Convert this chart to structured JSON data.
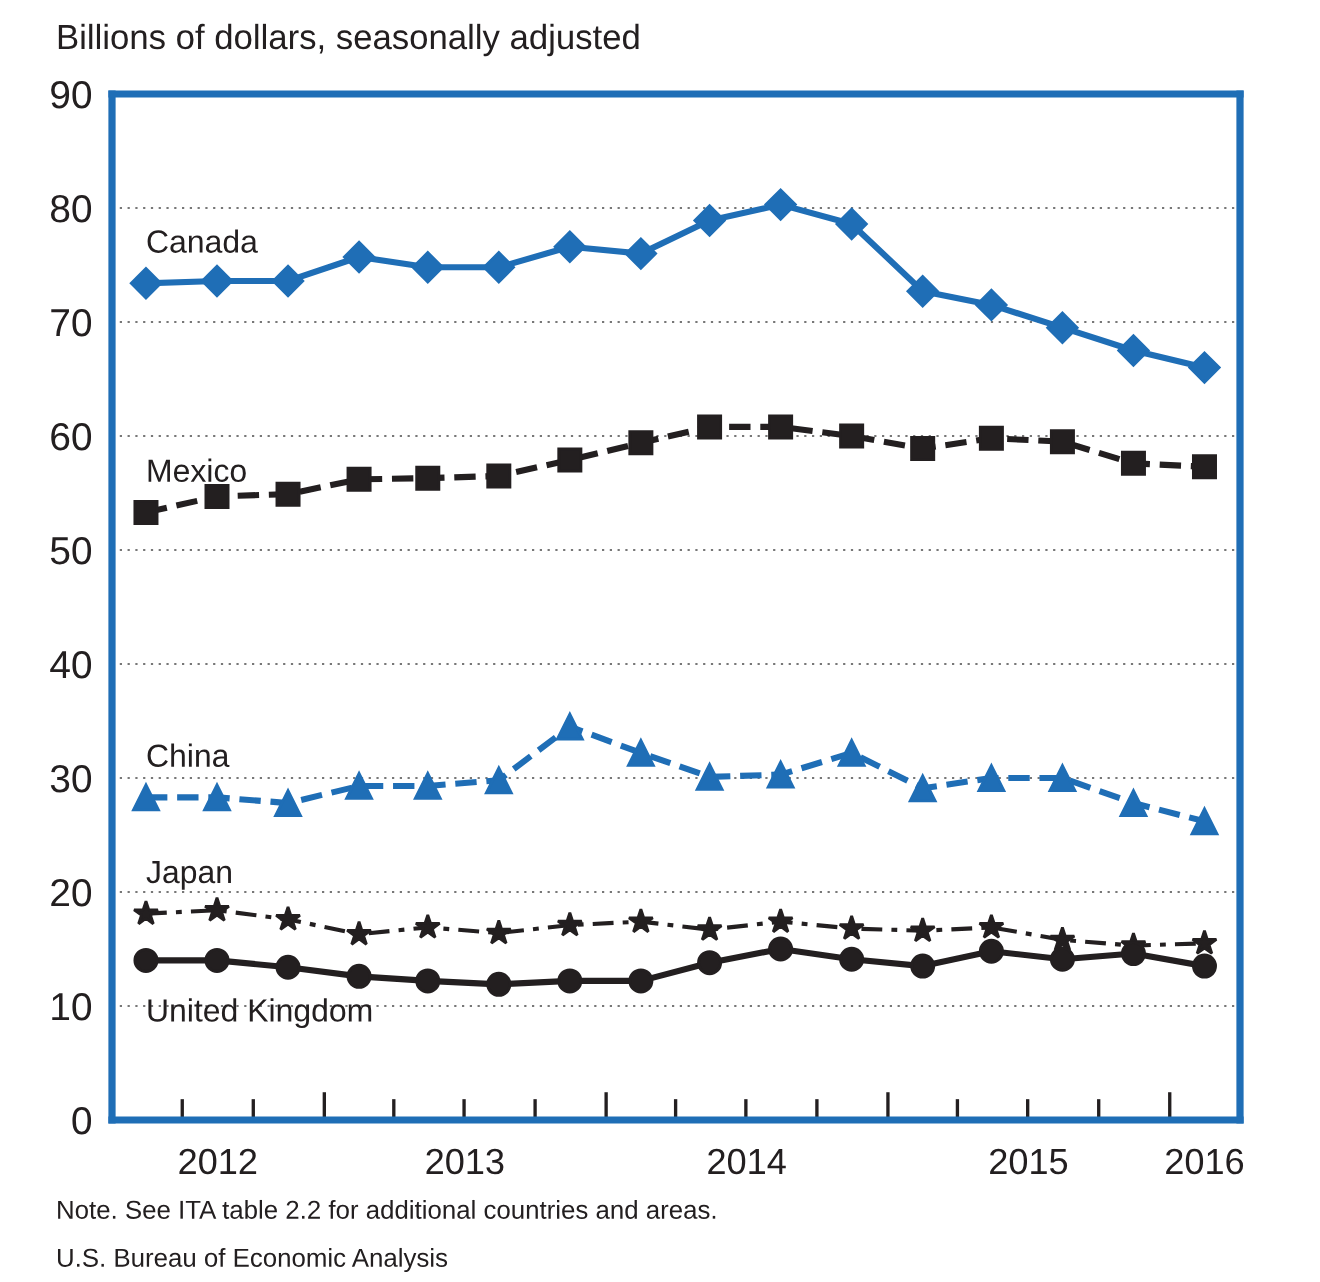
{
  "chart_data": {
    "type": "line",
    "ylabel": "Billions of dollars, seasonally adjusted",
    "x": [
      "2012-05-15",
      "2012-08-15",
      "2012-11-15",
      "2013-02-15",
      "2013-05-15",
      "2013-08-15",
      "2013-11-15",
      "2014-02-15",
      "2014-05-15",
      "2014-08-15",
      "2014-11-15",
      "2015-02-15",
      "2015-05-15",
      "2015-08-15",
      "2015-11-15",
      "2016-02-15"
    ],
    "xlim": [
      "2012-04-01",
      "2016-04-01"
    ],
    "xticks": [
      {
        "value": "2012-07-01",
        "label": null
      },
      {
        "value": "2012-08-16",
        "label": "2012"
      },
      {
        "value": "2012-10-01",
        "label": null
      },
      {
        "value": "2013-01-01",
        "label": null
      },
      {
        "value": "2013-04-01",
        "label": null
      },
      {
        "value": "2013-07-01",
        "label": null
      },
      {
        "value": "2013-07-02",
        "label": "2013"
      },
      {
        "value": "2013-10-01",
        "label": null
      },
      {
        "value": "2014-01-01",
        "label": null
      },
      {
        "value": "2014-04-01",
        "label": null
      },
      {
        "value": "2014-07-01",
        "label": null
      },
      {
        "value": "2014-07-02",
        "label": "2014"
      },
      {
        "value": "2014-10-01",
        "label": null
      },
      {
        "value": "2015-01-01",
        "label": null
      },
      {
        "value": "2015-04-01",
        "label": null
      },
      {
        "value": "2015-07-01",
        "label": null
      },
      {
        "value": "2015-07-02",
        "label": "2015"
      },
      {
        "value": "2015-10-01",
        "label": null
      },
      {
        "value": "2016-01-01",
        "label": null
      },
      {
        "value": "2016-02-15",
        "label": "2016"
      }
    ],
    "ylim": [
      0,
      90
    ],
    "yticks": [
      0,
      10,
      20,
      30,
      40,
      50,
      60,
      70,
      80,
      90
    ],
    "grid": "y",
    "series": [
      {
        "name": "Canada",
        "color": "#1f6eb6",
        "marker": "diamond",
        "line_style": "solid",
        "values": [
          73.4,
          73.6,
          73.6,
          75.7,
          74.8,
          74.8,
          76.6,
          76.0,
          78.9,
          80.3,
          78.6,
          72.7,
          71.5,
          69.5,
          67.5,
          66.0
        ]
      },
      {
        "name": "Mexico",
        "color": "#231f20",
        "marker": "square",
        "line_style": "dashed",
        "values": [
          53.3,
          54.7,
          54.9,
          56.2,
          56.3,
          56.5,
          57.9,
          59.4,
          60.8,
          60.8,
          60.0,
          58.9,
          59.8,
          59.5,
          57.6,
          57.3
        ]
      },
      {
        "name": "China",
        "color": "#1f6eb6",
        "marker": "triangle",
        "line_style": "dashed",
        "values": [
          28.3,
          28.3,
          27.8,
          29.3,
          29.3,
          29.8,
          34.5,
          32.2,
          30.1,
          30.3,
          32.2,
          29.1,
          30.0,
          30.0,
          27.8,
          26.2
        ]
      },
      {
        "name": "Japan",
        "color": "#231f20",
        "marker": "star",
        "line_style": "dashdot",
        "values": [
          18.1,
          18.4,
          17.6,
          16.3,
          16.9,
          16.4,
          17.1,
          17.4,
          16.7,
          17.4,
          16.8,
          16.6,
          16.9,
          15.8,
          15.3,
          15.5
        ]
      },
      {
        "name": "United Kingdom",
        "color": "#231f20",
        "marker": "circle",
        "line_style": "solid",
        "values": [
          14.0,
          14.0,
          13.4,
          12.6,
          12.2,
          11.9,
          12.2,
          12.2,
          13.8,
          15.0,
          14.1,
          13.5,
          14.8,
          14.1,
          14.6,
          13.5
        ]
      }
    ],
    "annotations": [
      "Note. See ITA table 2.2 for additional countries and areas.",
      "U.S. Bureau of Economic Analysis"
    ]
  }
}
